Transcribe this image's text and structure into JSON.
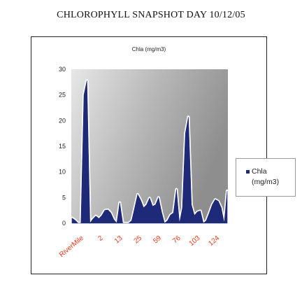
{
  "page_title": "CHLOROPHYLL SNAPSHOT DAY 10/12/05",
  "chart_data": {
    "type": "area",
    "title": "Chla (mg/m3)",
    "xlabel": "",
    "ylabel": "",
    "ylim": [
      0,
      30
    ],
    "y_ticks": [
      0,
      5,
      10,
      15,
      20,
      25,
      30
    ],
    "x_tick_labels": [
      "RiverMile",
      "2",
      "13",
      "25",
      "59",
      "76",
      "103",
      "124"
    ],
    "legend_position": "right",
    "grid": false,
    "background": "gray-gradient",
    "series": [
      {
        "name": "Chla (mg/m3)",
        "color": "#1e2a78",
        "values": [
          1,
          0.6,
          0,
          0,
          25,
          27.8,
          0,
          0.8,
          1.4,
          0.9,
          1.5,
          2.5,
          2.6,
          2,
          0.7,
          0,
          4,
          0,
          0,
          0,
          0.5,
          3,
          5.6,
          4.5,
          3,
          3.6,
          4.9,
          3.3,
          3.6,
          5,
          2.2,
          0,
          0.5,
          1.6,
          2,
          6.6,
          0,
          3,
          17.5,
          20.7,
          3.6,
          1.5,
          2.2,
          2.4,
          0,
          0.5,
          2,
          3.6,
          4.6,
          4.3,
          3,
          0,
          6.3
        ]
      }
    ]
  }
}
